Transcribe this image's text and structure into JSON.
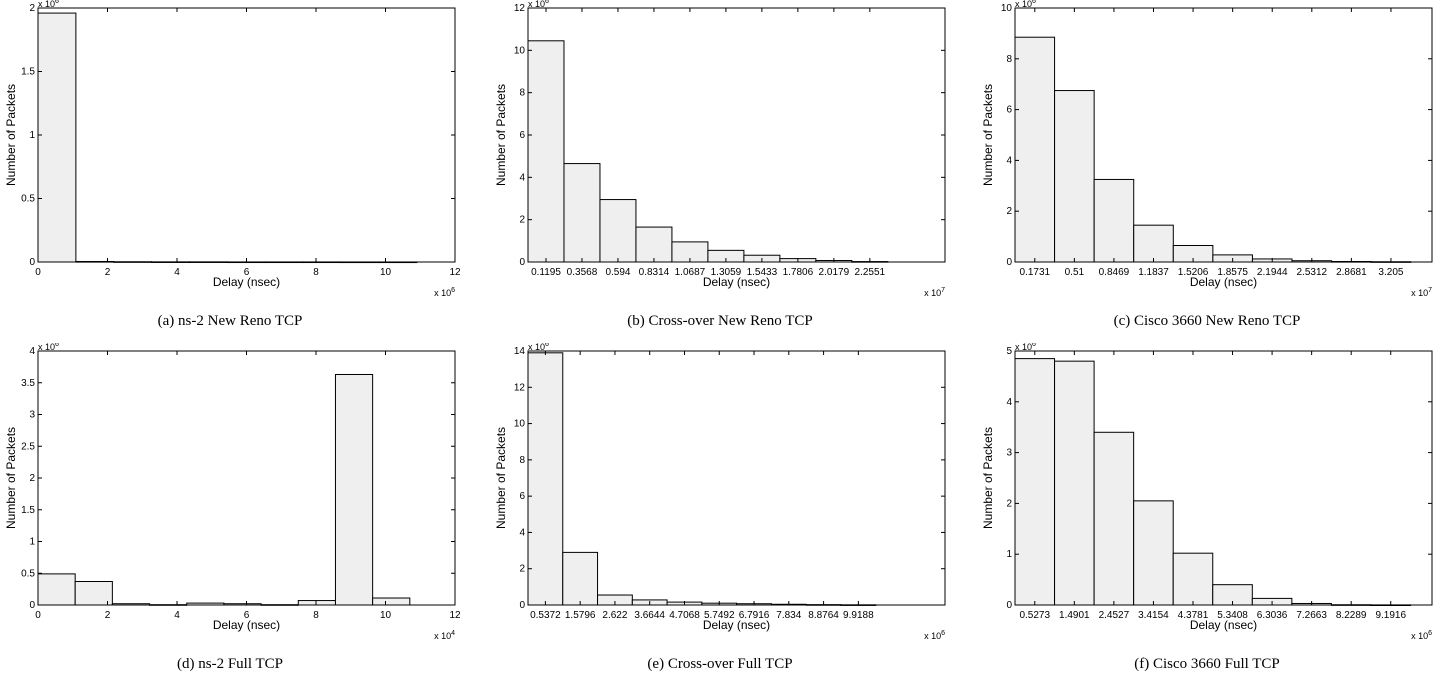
{
  "chart_data": [
    {
      "type": "bar",
      "caption": "(a) ns-2 New Reno TCP",
      "xlabel": "Delay (nsec)",
      "ylabel": "Number of Packets",
      "x_multiplier": "x 10^6",
      "y_multiplier": "x 10^6",
      "xlim": [
        0,
        12
      ],
      "ylim": [
        0,
        2
      ],
      "xticks": [
        0,
        2,
        4,
        6,
        8,
        10,
        12
      ],
      "xtick_labels": [
        "0",
        "2",
        "4",
        "6",
        "8",
        "10",
        "12"
      ],
      "yticks": [
        0,
        0.5,
        1,
        1.5,
        2
      ],
      "ytick_labels": [
        "0",
        "0.5",
        "1",
        "1.5",
        "2"
      ],
      "bin_edges": [
        0,
        1.09,
        2.18,
        3.27,
        4.36,
        5.45,
        6.54,
        7.63,
        8.72,
        9.81,
        10.9
      ],
      "values": [
        1.96,
        0.004,
        0.002,
        0.001,
        0.001,
        0.0005,
        0.0005,
        0.0005,
        0.0003,
        0.0003
      ]
    },
    {
      "type": "bar",
      "caption": "(b) Cross-over New Reno TCP",
      "xlabel": "Delay (nsec)",
      "ylabel": "Number of Packets",
      "x_multiplier": "x 10^7",
      "y_multiplier": "x 10^6",
      "xlim": [
        0,
        2.75
      ],
      "ylim": [
        0,
        12
      ],
      "xtick_labels": [
        "0.1195",
        "0.3568",
        "0.594",
        "0.8314",
        "1.0687",
        "1.3059",
        "1.5433",
        "1.7806",
        "2.0179",
        "2.2551"
      ],
      "yticks": [
        0,
        2,
        4,
        6,
        8,
        10,
        12
      ],
      "ytick_labels": [
        "0",
        "2",
        "4",
        "6",
        "8",
        "10",
        "12"
      ],
      "bin_edges": [
        0,
        0.2373,
        0.4746,
        0.7119,
        0.9492,
        1.1865,
        1.4238,
        1.6611,
        1.8984,
        2.1357,
        2.373
      ],
      "values": [
        10.45,
        4.65,
        2.95,
        1.65,
        0.95,
        0.55,
        0.32,
        0.16,
        0.07,
        0.02
      ]
    },
    {
      "type": "bar",
      "caption": "(c) Cisco 3660 New Reno TCP",
      "xlabel": "Delay (nsec)",
      "ylabel": "Number of Packets",
      "x_multiplier": "x 10^7",
      "y_multiplier": "x 10^6",
      "xlim": [
        0,
        3.55
      ],
      "ylim": [
        0,
        10
      ],
      "xtick_labels": [
        "0.1731",
        "0.51",
        "0.8469",
        "1.1837",
        "1.5206",
        "1.8575",
        "2.1944",
        "2.5312",
        "2.8681",
        "3.205"
      ],
      "yticks": [
        0,
        2,
        4,
        6,
        8,
        10
      ],
      "ytick_labels": [
        "0",
        "2",
        "4",
        "6",
        "8",
        "10"
      ],
      "bin_edges": [
        0,
        0.3369,
        0.6738,
        1.0107,
        1.3476,
        1.6845,
        2.0214,
        2.3583,
        2.6952,
        3.0321,
        3.369
      ],
      "values": [
        8.85,
        6.75,
        3.25,
        1.45,
        0.65,
        0.28,
        0.12,
        0.05,
        0.02,
        0.01
      ]
    },
    {
      "type": "bar",
      "caption": "(d) ns-2 Full TCP",
      "xlabel": "Delay (nsec)",
      "ylabel": "Number of Packets",
      "x_multiplier": "x 10^4",
      "y_multiplier": "x 10^6",
      "xlim": [
        0,
        12
      ],
      "ylim": [
        0,
        4
      ],
      "xticks": [
        0,
        2,
        4,
        6,
        8,
        10,
        12
      ],
      "xtick_labels": [
        "0",
        "2",
        "4",
        "6",
        "8",
        "10",
        "12"
      ],
      "yticks": [
        0,
        0.5,
        1,
        1.5,
        2,
        2.5,
        3,
        3.5,
        4
      ],
      "ytick_labels": [
        "0",
        "0.5",
        "1",
        "1.5",
        "2",
        "2.5",
        "3",
        "3.5",
        "4"
      ],
      "bin_edges": [
        0,
        1.07,
        2.14,
        3.21,
        4.28,
        5.35,
        6.42,
        7.49,
        8.56,
        9.63,
        10.7
      ],
      "values": [
        0.49,
        0.37,
        0.02,
        0.005,
        0.03,
        0.02,
        0.005,
        0.07,
        3.63,
        0.11
      ]
    },
    {
      "type": "bar",
      "caption": "(e) Cross-over Full TCP",
      "xlabel": "Delay (nsec)",
      "ylabel": "Number of Packets",
      "x_multiplier": "x 10^6",
      "y_multiplier": "x 10^6",
      "xlim": [
        0,
        12.5
      ],
      "ylim": [
        0,
        14
      ],
      "xtick_labels": [
        "0.5372",
        "1.5796",
        "2.622",
        "3.6644",
        "4.7068",
        "5.7492",
        "6.7916",
        "7.834",
        "8.8764",
        "9.9188"
      ],
      "yticks": [
        0,
        2,
        4,
        6,
        8,
        10,
        12,
        14
      ],
      "ytick_labels": [
        "0",
        "2",
        "4",
        "6",
        "8",
        "10",
        "12",
        "14"
      ],
      "bin_edges": [
        0,
        1.0424,
        2.0848,
        3.1272,
        4.1696,
        5.212,
        6.2544,
        7.2968,
        8.3392,
        9.3816,
        10.424
      ],
      "values": [
        13.9,
        2.9,
        0.55,
        0.28,
        0.16,
        0.1,
        0.07,
        0.04,
        0.02,
        0.01
      ]
    },
    {
      "type": "bar",
      "caption": "(f) Cisco 3660 Full TCP",
      "xlabel": "Delay (nsec)",
      "ylabel": "Number of Packets",
      "x_multiplier": "x 10^6",
      "y_multiplier": "x 10^6",
      "xlim": [
        0,
        10.15
      ],
      "ylim": [
        0,
        5
      ],
      "xtick_labels": [
        "0.5273",
        "1.4901",
        "2.4527",
        "3.4154",
        "4.3781",
        "5.3408",
        "6.3036",
        "7.2663",
        "8.2289",
        "9.1916"
      ],
      "yticks": [
        0,
        1,
        2,
        3,
        4,
        5
      ],
      "ytick_labels": [
        "0",
        "1",
        "2",
        "3",
        "4",
        "5"
      ],
      "bin_edges": [
        0,
        0.9627,
        1.9254,
        2.8881,
        3.8508,
        4.8135,
        5.7762,
        6.7389,
        7.7016,
        8.6643,
        9.627
      ],
      "values": [
        4.85,
        4.8,
        3.4,
        2.05,
        1.02,
        0.4,
        0.13,
        0.03,
        0.005,
        0.002
      ]
    }
  ]
}
